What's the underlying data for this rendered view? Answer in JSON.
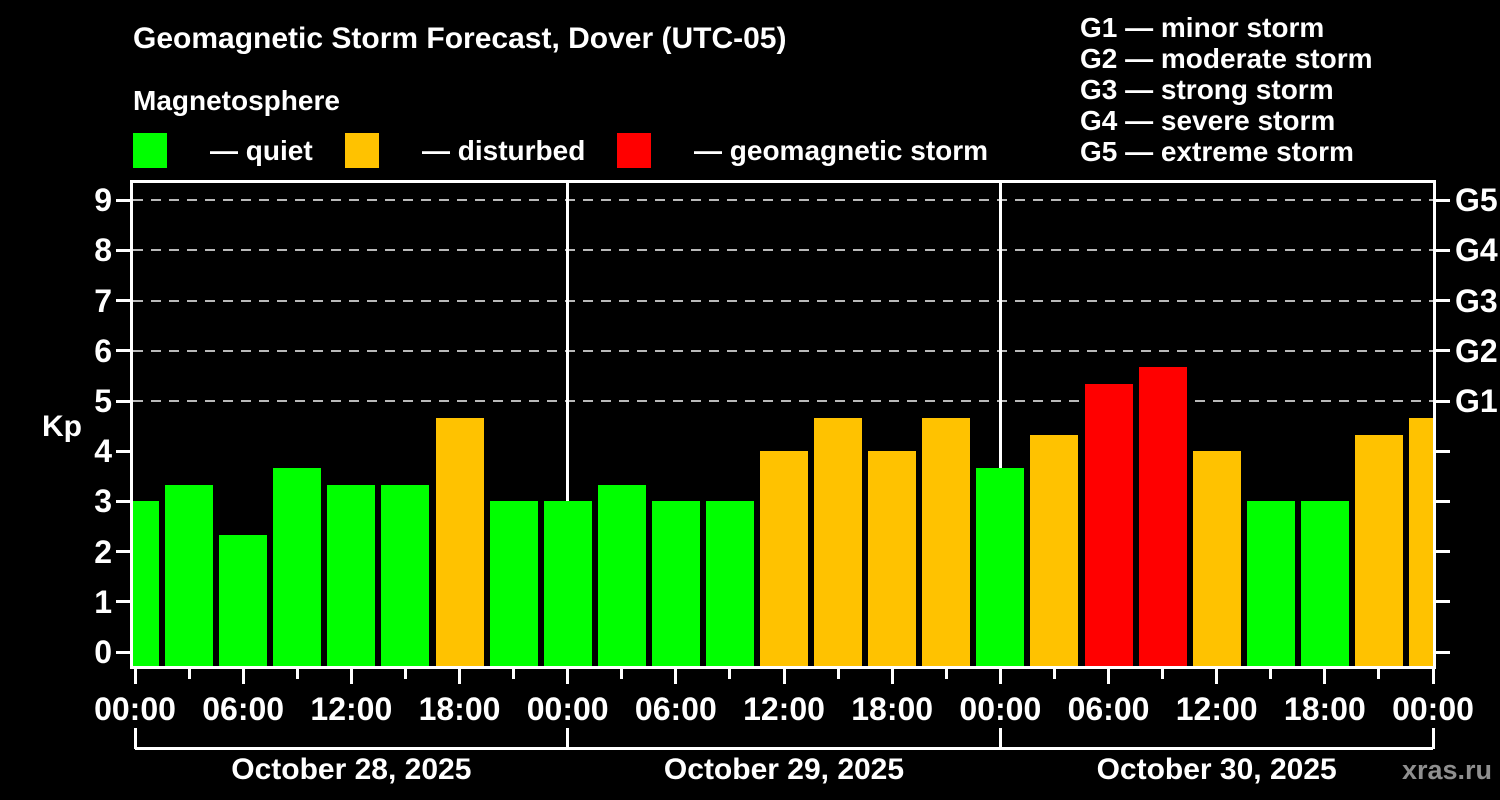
{
  "title": "Geomagnetic Storm Forecast, Dover (UTC-05)",
  "subtitle": "Magnetosphere",
  "legend": {
    "items": [
      {
        "key": "quiet",
        "label": "— quiet",
        "color": "#00FF00"
      },
      {
        "key": "disturbed",
        "label": "— disturbed",
        "color": "#FFC200"
      },
      {
        "key": "storm",
        "label": "— geomagnetic storm",
        "color": "#FF0000"
      }
    ]
  },
  "g_legend": [
    "G1 — minor storm",
    "G2 — moderate storm",
    "G3 — strong storm",
    "G4 — severe storm",
    "G5 — extreme storm"
  ],
  "watermark": "xras.ru",
  "chart_data": {
    "type": "bar",
    "title": "Geomagnetic Storm Forecast, Dover (UTC-05)",
    "subtitle": "Magnetosphere",
    "ylabel": "Kp",
    "ylim": [
      0,
      9
    ],
    "yticks": [
      0,
      1,
      2,
      3,
      4,
      5,
      6,
      7,
      8,
      9
    ],
    "grid_kp": [
      5,
      6,
      7,
      8,
      9
    ],
    "right_axis": [
      {
        "kp": 5,
        "label": "G1"
      },
      {
        "kp": 6,
        "label": "G2"
      },
      {
        "kp": 7,
        "label": "G3"
      },
      {
        "kp": 8,
        "label": "G4"
      },
      {
        "kp": 9,
        "label": "G5"
      }
    ],
    "hours_step": 3,
    "points": [
      {
        "hour": 0,
        "kp": 3.0,
        "status": "quiet"
      },
      {
        "hour": 3,
        "kp": 3.33,
        "status": "quiet"
      },
      {
        "hour": 6,
        "kp": 2.33,
        "status": "quiet"
      },
      {
        "hour": 9,
        "kp": 3.67,
        "status": "quiet"
      },
      {
        "hour": 12,
        "kp": 3.33,
        "status": "quiet"
      },
      {
        "hour": 15,
        "kp": 3.33,
        "status": "quiet"
      },
      {
        "hour": 18,
        "kp": 4.67,
        "status": "disturbed"
      },
      {
        "hour": 21,
        "kp": 3.0,
        "status": "quiet"
      },
      {
        "hour": 24,
        "kp": 3.0,
        "status": "quiet"
      },
      {
        "hour": 27,
        "kp": 3.33,
        "status": "quiet"
      },
      {
        "hour": 30,
        "kp": 3.0,
        "status": "quiet"
      },
      {
        "hour": 33,
        "kp": 3.0,
        "status": "quiet"
      },
      {
        "hour": 36,
        "kp": 4.0,
        "status": "disturbed"
      },
      {
        "hour": 39,
        "kp": 4.67,
        "status": "disturbed"
      },
      {
        "hour": 42,
        "kp": 4.0,
        "status": "disturbed"
      },
      {
        "hour": 45,
        "kp": 4.67,
        "status": "disturbed"
      },
      {
        "hour": 48,
        "kp": 3.67,
        "status": "quiet"
      },
      {
        "hour": 51,
        "kp": 4.33,
        "status": "disturbed"
      },
      {
        "hour": 54,
        "kp": 5.33,
        "status": "storm"
      },
      {
        "hour": 57,
        "kp": 5.67,
        "status": "storm"
      },
      {
        "hour": 60,
        "kp": 4.0,
        "status": "disturbed"
      },
      {
        "hour": 63,
        "kp": 3.0,
        "status": "quiet"
      },
      {
        "hour": 66,
        "kp": 3.0,
        "status": "quiet"
      },
      {
        "hour": 69,
        "kp": 4.33,
        "status": "disturbed"
      },
      {
        "hour": 72,
        "kp": 4.67,
        "status": "disturbed"
      }
    ],
    "x_tick_labels": [
      "00:00",
      "06:00",
      "12:00",
      "18:00",
      "00:00",
      "06:00",
      "12:00",
      "18:00",
      "00:00",
      "06:00",
      "12:00",
      "18:00",
      "00:00"
    ],
    "day_boundaries_hours": [
      0,
      24,
      48,
      72
    ],
    "days": [
      "October 28, 2025",
      "October 29, 2025",
      "October 30, 2025"
    ],
    "colors": {
      "quiet": "#00FF00",
      "disturbed": "#FFC200",
      "storm": "#FF0000"
    },
    "legend_position": "top-left",
    "grid": "dashed horizontal at Kp 5-9 only"
  }
}
